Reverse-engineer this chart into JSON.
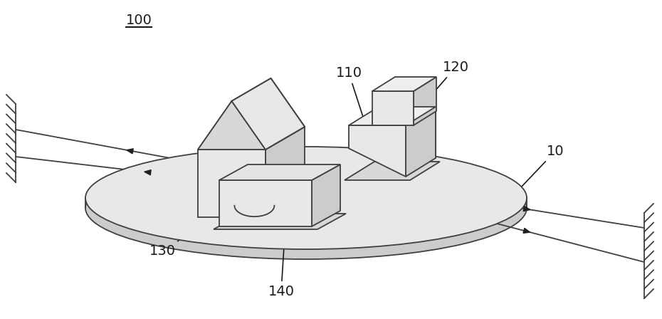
{
  "title": "100",
  "label_110": "110",
  "label_120": "120",
  "label_130": "130",
  "label_140": "140",
  "label_10": "10",
  "bg_color": "#ffffff",
  "line_color": "#404040",
  "figsize": [
    9.3,
    4.48
  ],
  "dpi": 100
}
